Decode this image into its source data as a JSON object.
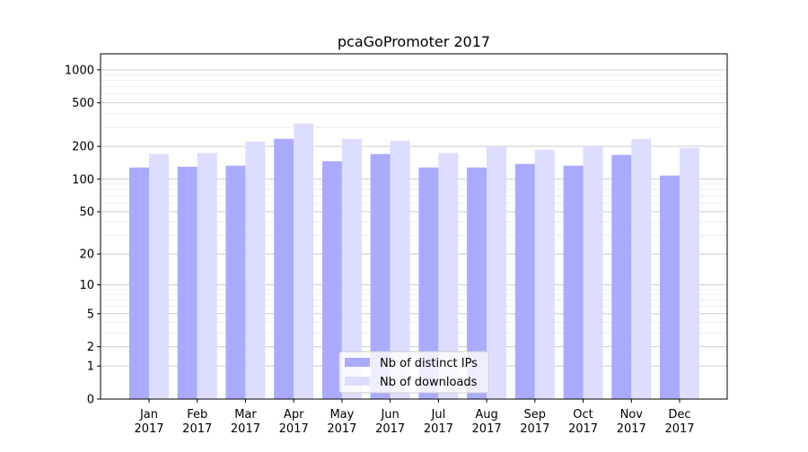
{
  "chart_data": {
    "type": "bar",
    "title": "pcaGoPromoter 2017",
    "xlabel": "",
    "ylabel": "",
    "yscale": "log(1+x)",
    "ylim": [
      0,
      1400
    ],
    "yticks": [
      0,
      1,
      2,
      5,
      10,
      20,
      50,
      100,
      200,
      500,
      1000
    ],
    "grid": true,
    "legend_position": "bottom-center",
    "categories": [
      [
        "Jan",
        "2017"
      ],
      [
        "Feb",
        "2017"
      ],
      [
        "Mar",
        "2017"
      ],
      [
        "Apr",
        "2017"
      ],
      [
        "May",
        "2017"
      ],
      [
        "Jun",
        "2017"
      ],
      [
        "Jul",
        "2017"
      ],
      [
        "Aug",
        "2017"
      ],
      [
        "Sep",
        "2017"
      ],
      [
        "Oct",
        "2017"
      ],
      [
        "Nov",
        "2017"
      ],
      [
        "Dec",
        "2017"
      ]
    ],
    "series": [
      {
        "name": "Nb of distinct IPs",
        "color": "#aaaaff",
        "values": [
          128,
          130,
          133,
          234,
          146,
          170,
          128,
          128,
          138,
          133,
          167,
          108
        ]
      },
      {
        "name": "Nb of downloads",
        "color": "#ddddff",
        "values": [
          170,
          174,
          221,
          323,
          234,
          225,
          174,
          200,
          187,
          200,
          234,
          194
        ]
      }
    ]
  }
}
